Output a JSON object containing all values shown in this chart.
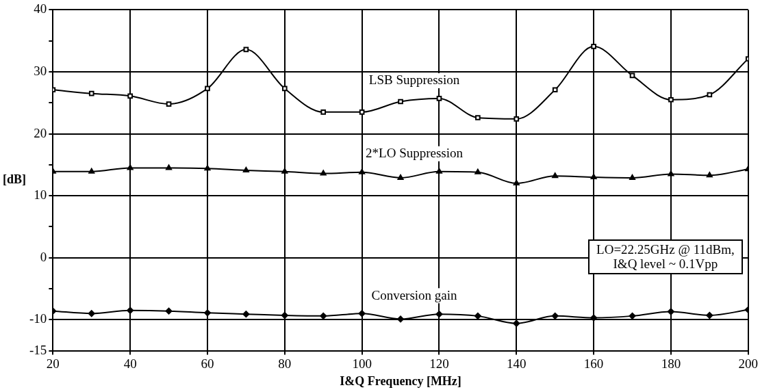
{
  "chart_data": {
    "type": "line",
    "xlabel": "I&Q Frequency [MHz]",
    "ylabel": "[dB]",
    "x": [
      20,
      30,
      40,
      50,
      60,
      70,
      80,
      90,
      100,
      110,
      120,
      130,
      140,
      150,
      160,
      170,
      180,
      190,
      200
    ],
    "series": [
      {
        "name": "LSB Suppression",
        "color": "#000000",
        "marker": "square",
        "values": [
          27.1,
          26.5,
          26.1,
          24.8,
          27.3,
          33.6,
          27.3,
          23.5,
          23.5,
          25.2,
          25.7,
          22.6,
          22.4,
          27.1,
          34.1,
          29.4,
          25.5,
          26.3,
          32.1
        ]
      },
      {
        "name": "2*LO Suppression",
        "color": "#000000",
        "marker": "triangle",
        "values": [
          13.9,
          13.9,
          14.5,
          14.5,
          14.4,
          14.1,
          13.9,
          13.6,
          13.8,
          12.9,
          13.9,
          13.8,
          12.0,
          13.2,
          13.0,
          12.9,
          13.5,
          13.3,
          14.3
        ]
      },
      {
        "name": "Conversion gain",
        "color": "#000000",
        "marker": "diamond",
        "values": [
          -8.6,
          -9.0,
          -8.5,
          -8.6,
          -8.9,
          -9.1,
          -9.3,
          -9.4,
          -9.0,
          -9.9,
          -9.1,
          -9.4,
          -10.6,
          -9.4,
          -9.7,
          -9.4,
          -8.7,
          -9.3,
          -8.4
        ]
      }
    ],
    "xlim": [
      20,
      200
    ],
    "xticks": [
      20,
      40,
      60,
      80,
      100,
      120,
      140,
      160,
      180,
      200
    ],
    "ylim": [
      -15,
      40
    ],
    "yticks": [
      -15,
      -10,
      {
        "value": -5,
        "label": null
      },
      0,
      {
        "value": 5,
        "label": null
      },
      10,
      {
        "value": 15,
        "label": null
      },
      20,
      {
        "value": 25,
        "label": null
      },
      30,
      {
        "value": 35,
        "label": null
      },
      40
    ],
    "grid": true,
    "legend": false,
    "annotations": [
      "LO=22.25GHz @ 11dBm,\nI&Q level ~ 0.1Vpp"
    ]
  }
}
